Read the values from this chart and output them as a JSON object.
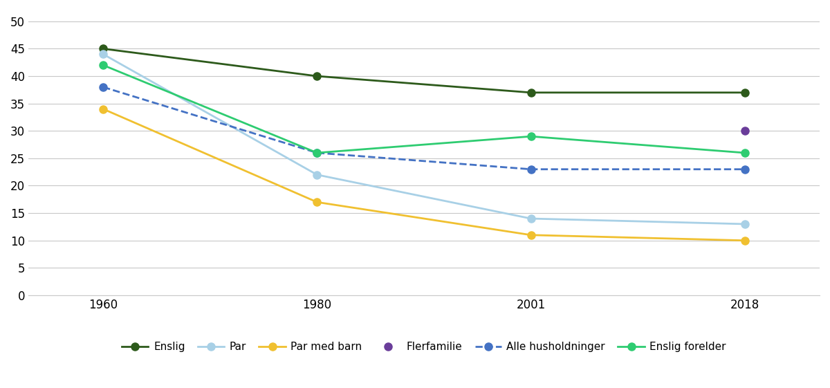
{
  "x_positions": [
    0,
    1,
    2,
    3
  ],
  "series": {
    "Enslig": {
      "values": [
        45,
        40,
        37,
        37
      ],
      "color": "#2d5a1b",
      "linestyle": "solid",
      "marker": "o",
      "linewidth": 2.0
    },
    "Par": {
      "values": [
        44,
        22,
        14,
        13
      ],
      "color": "#a8d0e6",
      "linestyle": "solid",
      "marker": "o",
      "linewidth": 2.0
    },
    "Par med barn": {
      "values": [
        34,
        17,
        11,
        10
      ],
      "color": "#f0c030",
      "linestyle": "solid",
      "marker": "o",
      "linewidth": 2.0
    },
    "Flerfamilie": {
      "values": [
        null,
        null,
        null,
        30
      ],
      "color": "#6a3d9a",
      "linestyle": "solid",
      "marker": "o",
      "linewidth": 2.0
    },
    "Alle husholdninger": {
      "values": [
        38,
        26,
        23,
        23
      ],
      "color": "#4472c4",
      "linestyle": "dashed",
      "marker": "o",
      "linewidth": 2.0
    },
    "Enslig forelder": {
      "values": [
        42,
        26,
        29,
        26
      ],
      "color": "#2ecc71",
      "linestyle": "solid",
      "marker": "o",
      "linewidth": 2.0
    }
  },
  "xlim": [
    -0.35,
    3.35
  ],
  "ylim": [
    0,
    52
  ],
  "yticks": [
    0,
    5,
    10,
    15,
    20,
    25,
    30,
    35,
    40,
    45,
    50
  ],
  "xtick_labels": [
    "1960",
    "1980",
    "2001",
    "2018"
  ],
  "background_color": "#ffffff",
  "grid_color": "#c8c8c8",
  "markersize": 8,
  "legend_order": [
    "Enslig",
    "Par",
    "Par med barn",
    "Flerfamilie",
    "Alle husholdninger",
    "Enslig forelder"
  ]
}
